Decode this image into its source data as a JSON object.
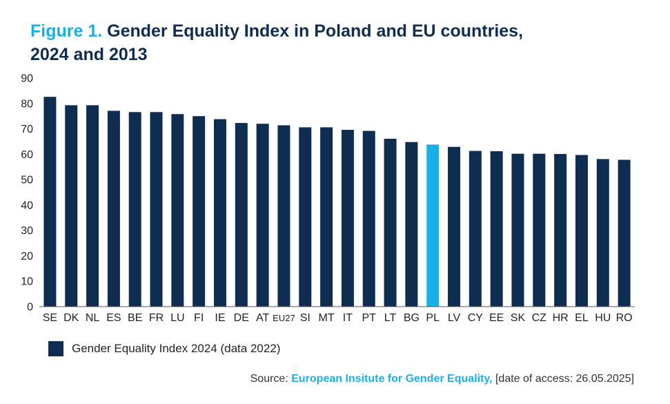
{
  "header": {
    "figure_label": "Figure 1.",
    "title": "Gender Equality Index in Poland and EU countries, 2024 and 2013"
  },
  "legend": {
    "label": "Gender Equality Index 2024 (data 2022)"
  },
  "source": {
    "prefix": "Source:",
    "organization": "European Insitute for Gender Equality,",
    "suffix": "[date of access: 26.05.2025]"
  },
  "colors": {
    "bar": "#0f2d50",
    "highlight": "#19b0e8"
  },
  "chart_data": {
    "type": "bar",
    "categories": [
      "SE",
      "DK",
      "NL",
      "ES",
      "BE",
      "FR",
      "LU",
      "FI",
      "IE",
      "DE",
      "AT",
      "EU27",
      "SI",
      "MT",
      "IT",
      "PT",
      "LT",
      "BG",
      "PL",
      "LV",
      "CY",
      "EE",
      "SK",
      "CZ",
      "HR",
      "EL",
      "HU",
      "RO"
    ],
    "series": [
      {
        "name": "Gender Equality Index 2024 (data 2022)",
        "values": [
          82.6,
          79.3,
          79.3,
          77.1,
          76.6,
          76.6,
          75.8,
          75.0,
          73.8,
          72.3,
          72.0,
          71.4,
          70.6,
          70.6,
          69.6,
          69.2,
          66.1,
          64.8,
          63.8,
          62.9,
          61.3,
          61.2,
          60.2,
          60.2,
          60.1,
          59.7,
          58.1,
          57.8
        ]
      }
    ],
    "highlight_category": "PL",
    "ylim": [
      0,
      90
    ],
    "yticks": [
      0,
      10,
      20,
      30,
      40,
      50,
      60,
      70,
      80,
      90
    ],
    "xlabel": "",
    "ylabel": "",
    "grid": false,
    "legend_position": "bottom-left"
  }
}
